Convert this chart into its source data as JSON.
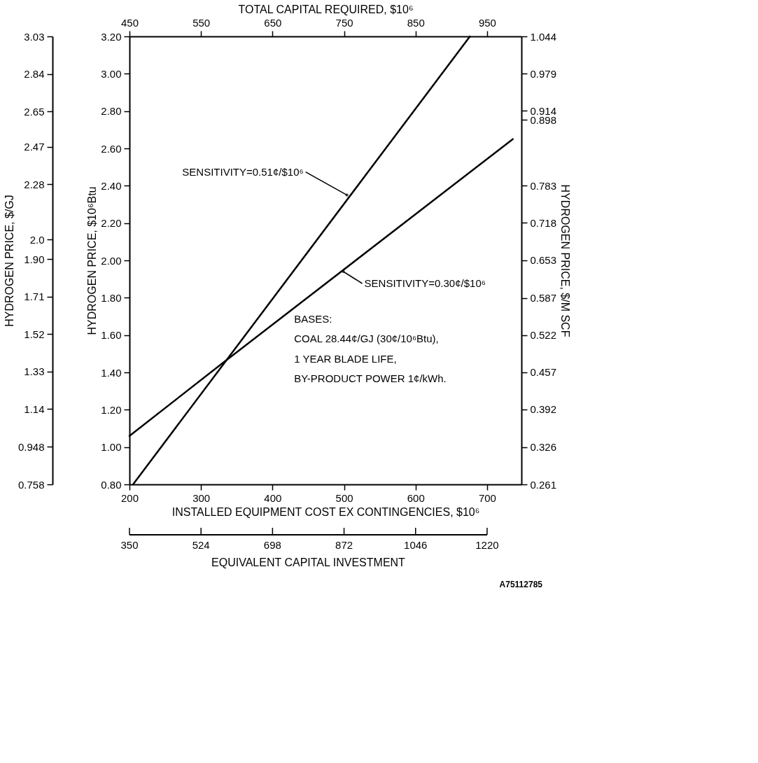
{
  "chart_data": {
    "type": "line",
    "xlabel": "INSTALLED EQUIPMENT COST EX CONTINGENCIES, $10⁶",
    "x2label": "TOTAL CAPITAL REQUIRED, $10⁶",
    "ylabel": "HYDROGEN PRICE, $10⁶Btu",
    "y2label": "HYDROGEN PRICE, $/M SCF",
    "y3label": "HYDROGEN PRICE, $/GJ",
    "xlim": [
      200,
      748
    ],
    "xticks": [
      200,
      300,
      400,
      500,
      600,
      700
    ],
    "x2lim": [
      450,
      998
    ],
    "x2ticks": [
      450,
      550,
      650,
      750,
      850,
      950
    ],
    "ylim": [
      0.8,
      3.2
    ],
    "yticks": [
      {
        "value": 0.8,
        "label": "0.80"
      },
      {
        "value": 1.0,
        "label": "1.00"
      },
      {
        "value": 1.2,
        "label": "1.20"
      },
      {
        "value": 1.4,
        "label": "1.40"
      },
      {
        "value": 1.6,
        "label": "1.60"
      },
      {
        "value": 1.8,
        "label": "1.80"
      },
      {
        "value": 2.0,
        "label": "2.00"
      },
      {
        "value": 2.2,
        "label": "2.20"
      },
      {
        "value": 2.4,
        "label": "2.40"
      },
      {
        "value": 2.6,
        "label": "2.60"
      },
      {
        "value": 2.8,
        "label": "2.80"
      },
      {
        "value": 3.0,
        "label": "3.00"
      },
      {
        "value": 3.2,
        "label": "3.20"
      }
    ],
    "y2lim": [
      0.261,
      1.044
    ],
    "y2ticks": [
      0.261,
      0.326,
      0.392,
      0.457,
      0.522,
      0.587,
      0.653,
      0.718,
      0.783,
      0.898,
      0.914,
      0.979,
      1.044
    ],
    "y3lim": [
      0.758,
      3.03
    ],
    "y3ticks": [
      0.758,
      0.948,
      1.14,
      1.33,
      1.52,
      1.71,
      {
        "value": 1.9,
        "label": "1.90"
      },
      {
        "value": 2.0,
        "label": "2.0"
      },
      2.28,
      2.47,
      2.65,
      2.84,
      3.03
    ],
    "series": [
      {
        "color": "#000000",
        "x": [
          205,
          676
        ],
        "values": [
          0.8,
          3.2
        ]
      },
      {
        "color": "#000000",
        "x": [
          200,
          332,
          736
        ],
        "values": [
          1.06,
          1.455,
          2.65
        ]
      }
    ],
    "annotations": [
      {
        "text": "SENSITIVITY=0.51¢/$10⁶",
        "x": 504,
        "y": 2.35
      },
      {
        "text": "SENSITIVITY=0.30¢/$10⁶",
        "x": 499,
        "y": 1.94
      },
      "BASES:\nCOAL 28.44¢/GJ (30¢/10⁶Btu),\n1 YEAR BLADE LIFE,\nBY-PRODUCT POWER 1¢/kWh.",
      "A75112785",
      "350",
      "524",
      "698",
      "872",
      "1046",
      "1220",
      "EQUIVALENT CAPITAL INVESTMENT"
    ],
    "grid": false,
    "legend": false
  }
}
